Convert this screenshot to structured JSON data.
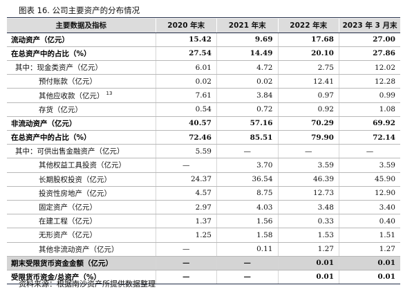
{
  "caption": {
    "text": "图表 16.   公司主要资产的分布情况"
  },
  "table": {
    "headers": [
      "主要数据及指标",
      "2020 年末",
      "2021 年末",
      "2022 年末",
      "2023 年 3 月末"
    ],
    "rows": [
      {
        "label": "流动资产（亿元）",
        "footnote": "",
        "indent": 0,
        "bold": true,
        "shaded": false,
        "values": [
          "15.42",
          "9.69",
          "17.68",
          "27.00"
        ]
      },
      {
        "label": "在总资产中的占比（%）",
        "footnote": "",
        "indent": 0,
        "bold": true,
        "shaded": false,
        "values": [
          "27.54",
          "14.49",
          "20.10",
          "27.86"
        ]
      },
      {
        "label": "其中：现金类资产（亿元）",
        "footnote": "",
        "indent": 1,
        "bold": false,
        "shaded": false,
        "values": [
          "6.01",
          "4.72",
          "2.75",
          "12.02"
        ]
      },
      {
        "label": "预付账款（亿元）",
        "footnote": "",
        "indent": 2,
        "bold": false,
        "shaded": false,
        "values": [
          "0.02",
          "0.02",
          "12.41",
          "12.28"
        ]
      },
      {
        "label": "其他应收款（亿元）",
        "footnote": "13",
        "indent": 2,
        "bold": false,
        "shaded": false,
        "values": [
          "7.61",
          "3.84",
          "0.97",
          "0.99"
        ]
      },
      {
        "label": "存货（亿元）",
        "footnote": "",
        "indent": 2,
        "bold": false,
        "shaded": false,
        "values": [
          "0.54",
          "0.72",
          "0.92",
          "1.08"
        ]
      },
      {
        "label": "非流动资产（亿元）",
        "footnote": "",
        "indent": 0,
        "bold": true,
        "shaded": false,
        "values": [
          "40.57",
          "57.16",
          "70.29",
          "69.92"
        ]
      },
      {
        "label": "在总资产中的占比（%）",
        "footnote": "",
        "indent": 0,
        "bold": true,
        "shaded": false,
        "values": [
          "72.46",
          "85.51",
          "79.90",
          "72.14"
        ]
      },
      {
        "label": "其中：可供出售金融资产（亿元）",
        "footnote": "",
        "indent": 1,
        "bold": false,
        "shaded": false,
        "values": [
          "5.59",
          "—",
          "—",
          "—"
        ]
      },
      {
        "label": "其他权益工具投资（亿元）",
        "footnote": "",
        "indent": 2,
        "bold": false,
        "shaded": false,
        "values": [
          "—",
          "3.70",
          "3.59",
          "3.59"
        ]
      },
      {
        "label": "长期股权投资（亿元）",
        "footnote": "",
        "indent": 2,
        "bold": false,
        "shaded": false,
        "values": [
          "24.37",
          "36.54",
          "46.39",
          "45.90"
        ]
      },
      {
        "label": "投资性房地产（亿元）",
        "footnote": "",
        "indent": 2,
        "bold": false,
        "shaded": false,
        "values": [
          "4.57",
          "8.75",
          "12.73",
          "12.90"
        ]
      },
      {
        "label": "固定资产（亿元）",
        "footnote": "",
        "indent": 2,
        "bold": false,
        "shaded": false,
        "values": [
          "2.97",
          "4.03",
          "3.48",
          "3.40"
        ]
      },
      {
        "label": "在建工程（亿元）",
        "footnote": "",
        "indent": 2,
        "bold": false,
        "shaded": false,
        "values": [
          "1.37",
          "1.56",
          "0.33",
          "0.40"
        ]
      },
      {
        "label": "无形资产（亿元）",
        "footnote": "",
        "indent": 2,
        "bold": false,
        "shaded": false,
        "values": [
          "1.25",
          "1.58",
          "1.53",
          "1.51"
        ]
      },
      {
        "label": "其他非流动资产（亿元）",
        "footnote": "",
        "indent": 2,
        "bold": false,
        "shaded": false,
        "values": [
          "—",
          "0.11",
          "1.27",
          "1.27"
        ]
      },
      {
        "label": "期末受限货币资金金额（亿元）",
        "footnote": "",
        "indent": 0,
        "bold": true,
        "shaded": true,
        "values": [
          "—",
          "—",
          "0.01",
          "0.01"
        ]
      },
      {
        "label": "受限货币资金/总资产（%）",
        "footnote": "",
        "indent": 0,
        "bold": true,
        "shaded": false,
        "values": [
          "—",
          "—",
          "0.01",
          "0.01"
        ]
      }
    ]
  },
  "source": {
    "text": "资料来源：根据南沙资产所提供数据整理"
  },
  "colors": {
    "header_bg": "#dcdcdc",
    "shaded_row_bg": "#d4d4d4",
    "rule": "#1f2a44"
  }
}
